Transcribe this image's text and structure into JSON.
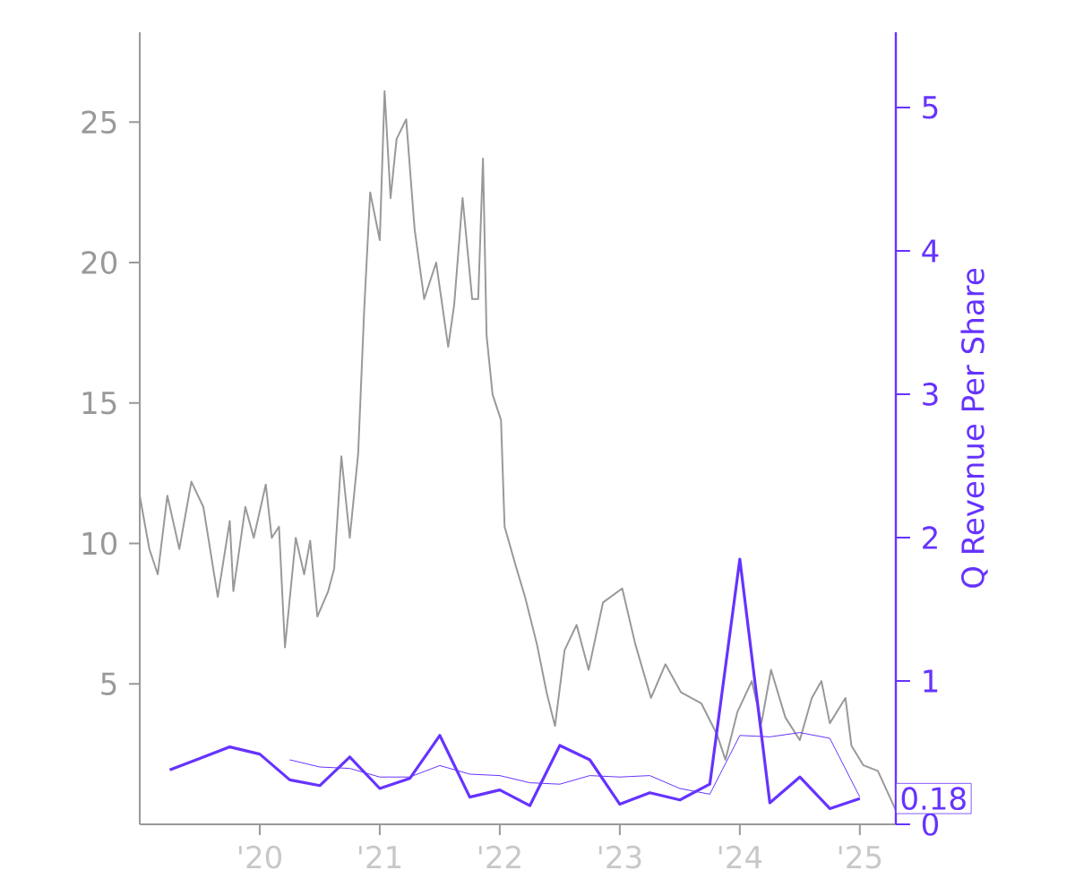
{
  "chart_data": {
    "type": "line",
    "y2label": "Q Revenue Per Share",
    "marker": "none",
    "xlim": [
      2019,
      2025.3
    ],
    "xticks": [
      {
        "value": 2020,
        "label": "'20"
      },
      {
        "value": 2021,
        "label": "'21"
      },
      {
        "value": 2022,
        "label": "'22"
      },
      {
        "value": 2023,
        "label": "'23"
      },
      {
        "value": 2024,
        "label": "'24"
      },
      {
        "value": 2025,
        "label": "'25"
      }
    ],
    "ylim": [
      0,
      28.2
    ],
    "yticks": [
      5,
      10,
      15,
      20,
      25
    ],
    "y2lim": [
      0,
      5.525
    ],
    "y2ticks": [
      0,
      1,
      2,
      3,
      4,
      5
    ],
    "series": [
      {
        "color": "#999999",
        "x": [
          2019.0,
          2019.08,
          2019.15,
          2019.23,
          2019.33,
          2019.43,
          2019.53,
          2019.65,
          2019.75,
          2019.78,
          2019.88,
          2019.95,
          2020.05,
          2020.1,
          2020.16,
          2020.21,
          2020.3,
          2020.37,
          2020.42,
          2020.48,
          2020.57,
          2020.62,
          2020.68,
          2020.75,
          2020.82,
          2020.87,
          2020.92,
          2021.0,
          2021.04,
          2021.09,
          2021.14,
          2021.22,
          2021.29,
          2021.37,
          2021.47,
          2021.57,
          2021.62,
          2021.69,
          2021.77,
          2021.82,
          2021.86,
          2021.89,
          2021.94,
          2022.01,
          2022.04,
          2022.14,
          2022.21,
          2022.31,
          2022.39,
          2022.46,
          2022.54,
          2022.64,
          2022.74,
          2022.86,
          2023.02,
          2023.13,
          2023.26,
          2023.38,
          2023.51,
          2023.68,
          2023.81,
          2023.88,
          2023.98,
          2024.1,
          2024.18,
          2024.26,
          2024.38,
          2024.5,
          2024.6,
          2024.68,
          2024.75,
          2024.88,
          2024.93,
          2025.03,
          2025.15,
          2025.3
        ],
        "values": [
          11.7,
          9.8,
          8.9,
          11.7,
          9.8,
          12.2,
          11.3,
          8.1,
          10.8,
          8.3,
          11.3,
          10.2,
          12.1,
          10.2,
          10.6,
          6.3,
          10.2,
          8.9,
          10.1,
          7.4,
          8.3,
          9.1,
          13.1,
          10.2,
          13.2,
          18.3,
          22.5,
          20.8,
          26.1,
          22.3,
          24.4,
          25.1,
          21.2,
          18.7,
          20.0,
          17.0,
          18.5,
          22.3,
          18.7,
          18.7,
          23.7,
          17.4,
          15.3,
          14.4,
          10.6,
          9.1,
          8.1,
          6.4,
          4.7,
          3.5,
          6.2,
          7.1,
          5.5,
          7.9,
          8.4,
          6.4,
          4.5,
          5.7,
          4.7,
          4.3,
          3.2,
          2.3,
          4.0,
          5.1,
          3.6,
          5.5,
          3.8,
          3.0,
          4.5,
          5.1,
          3.6,
          4.5,
          2.8,
          2.1,
          1.9,
          0.5
        ]
      },
      {
        "color": "#6633ff",
        "axis": "y2",
        "x": [
          2019.25,
          2019.5,
          2019.75,
          2020.0,
          2020.25,
          2020.5,
          2020.75,
          2021.0,
          2021.25,
          2021.5,
          2021.75,
          2022.0,
          2022.25,
          2022.5,
          2022.75,
          2023.0,
          2023.25,
          2023.5,
          2023.75,
          2024.0,
          2024.25,
          2024.5,
          2024.75,
          2025.0
        ],
        "values": [
          0.38,
          0.46,
          0.54,
          0.49,
          0.31,
          0.27,
          0.47,
          0.25,
          0.32,
          0.62,
          0.19,
          0.24,
          0.13,
          0.55,
          0.45,
          0.14,
          0.22,
          0.17,
          0.28,
          1.85,
          0.15,
          0.33,
          0.11,
          0.18
        ]
      },
      {
        "color": "#6633ff",
        "axis": "y2",
        "x": [
          2020.25,
          2020.5,
          2020.75,
          2021.0,
          2021.25,
          2021.5,
          2021.75,
          2022.0,
          2022.25,
          2022.5,
          2022.75,
          2023.0,
          2023.25,
          2023.5,
          2023.75,
          2024.0,
          2024.25,
          2024.5,
          2024.75,
          2025.0
        ],
        "values": [
          0.45,
          0.4,
          0.39,
          0.33,
          0.33,
          0.41,
          0.35,
          0.34,
          0.29,
          0.28,
          0.34,
          0.33,
          0.34,
          0.25,
          0.21,
          0.62,
          0.61,
          0.64,
          0.6,
          0.19
        ]
      }
    ],
    "annotations": [
      "0.18"
    ]
  }
}
